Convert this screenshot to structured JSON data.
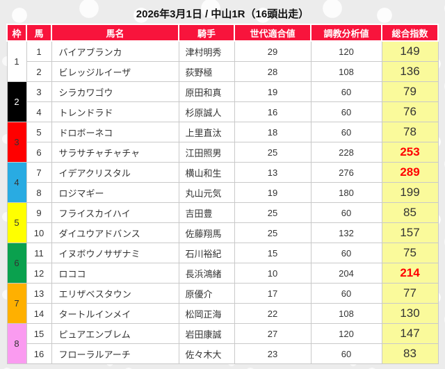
{
  "title": "2026年3月1日 / 中山1R（16頭出走）",
  "colors": {
    "header_bg": "#F8143C",
    "header_text": "#FFFFFF",
    "index_column_bg": "#FAFA9B",
    "highlight_value_text": "#FF0000",
    "body_text": "#333333"
  },
  "table": {
    "headers": [
      "枠",
      "馬",
      "馬名",
      "騎手",
      "世代適合値",
      "調教分析値",
      "総合指数"
    ],
    "frames": [
      {
        "number": "1",
        "color": "#FFFFFF",
        "text_color": "#333333"
      },
      {
        "number": "2",
        "color": "#000000",
        "text_color": "#FFFFFF"
      },
      {
        "number": "3",
        "color": "#FF0000",
        "text_color": "#333333"
      },
      {
        "number": "4",
        "color": "#29ABE2",
        "text_color": "#333333"
      },
      {
        "number": "5",
        "color": "#FFFF00",
        "text_color": "#333333"
      },
      {
        "number": "6",
        "color": "#0AA14E",
        "text_color": "#333333"
      },
      {
        "number": "7",
        "color": "#FFB000",
        "text_color": "#333333"
      },
      {
        "number": "8",
        "color": "#FA9BF0",
        "text_color": "#333333"
      }
    ],
    "rows": [
      {
        "num": "1",
        "name": "バイアブランカ",
        "jockey": "津村明秀",
        "gen": "29",
        "train": "120",
        "index": "149",
        "highlight": false
      },
      {
        "num": "2",
        "name": "ビレッジルイーザ",
        "jockey": "荻野極",
        "gen": "28",
        "train": "108",
        "index": "136",
        "highlight": false
      },
      {
        "num": "3",
        "name": "シラカワゴウ",
        "jockey": "原田和真",
        "gen": "19",
        "train": "60",
        "index": "79",
        "highlight": false
      },
      {
        "num": "4",
        "name": "トレンドラド",
        "jockey": "杉原誠人",
        "gen": "16",
        "train": "60",
        "index": "76",
        "highlight": false
      },
      {
        "num": "5",
        "name": "ドロボーネコ",
        "jockey": "上里直汰",
        "gen": "18",
        "train": "60",
        "index": "78",
        "highlight": false
      },
      {
        "num": "6",
        "name": "サラサチャチャチャ",
        "jockey": "江田照男",
        "gen": "25",
        "train": "228",
        "index": "253",
        "highlight": true
      },
      {
        "num": "7",
        "name": "イデアクリスタル",
        "jockey": "横山和生",
        "gen": "13",
        "train": "276",
        "index": "289",
        "highlight": true
      },
      {
        "num": "8",
        "name": "ロジマギー",
        "jockey": "丸山元気",
        "gen": "19",
        "train": "180",
        "index": "199",
        "highlight": false
      },
      {
        "num": "9",
        "name": "フライスカイハイ",
        "jockey": "吉田豊",
        "gen": "25",
        "train": "60",
        "index": "85",
        "highlight": false
      },
      {
        "num": "10",
        "name": "ダイユウアドバンス",
        "jockey": "佐藤翔馬",
        "gen": "25",
        "train": "132",
        "index": "157",
        "highlight": false
      },
      {
        "num": "11",
        "name": "イヌボウノサザナミ",
        "jockey": "石川裕紀",
        "gen": "15",
        "train": "60",
        "index": "75",
        "highlight": false
      },
      {
        "num": "12",
        "name": "ロココ",
        "jockey": "長浜鴻緒",
        "gen": "10",
        "train": "204",
        "index": "214",
        "highlight": true
      },
      {
        "num": "13",
        "name": "エリザベスタウン",
        "jockey": "原優介",
        "gen": "17",
        "train": "60",
        "index": "77",
        "highlight": false
      },
      {
        "num": "14",
        "name": "タートルインメイ",
        "jockey": "松岡正海",
        "gen": "22",
        "train": "108",
        "index": "130",
        "highlight": false
      },
      {
        "num": "15",
        "name": "ピュアエンブレム",
        "jockey": "岩田康誠",
        "gen": "27",
        "train": "120",
        "index": "147",
        "highlight": false
      },
      {
        "num": "16",
        "name": "フローラルアーチ",
        "jockey": "佐々木大",
        "gen": "23",
        "train": "60",
        "index": "83",
        "highlight": false
      }
    ]
  }
}
